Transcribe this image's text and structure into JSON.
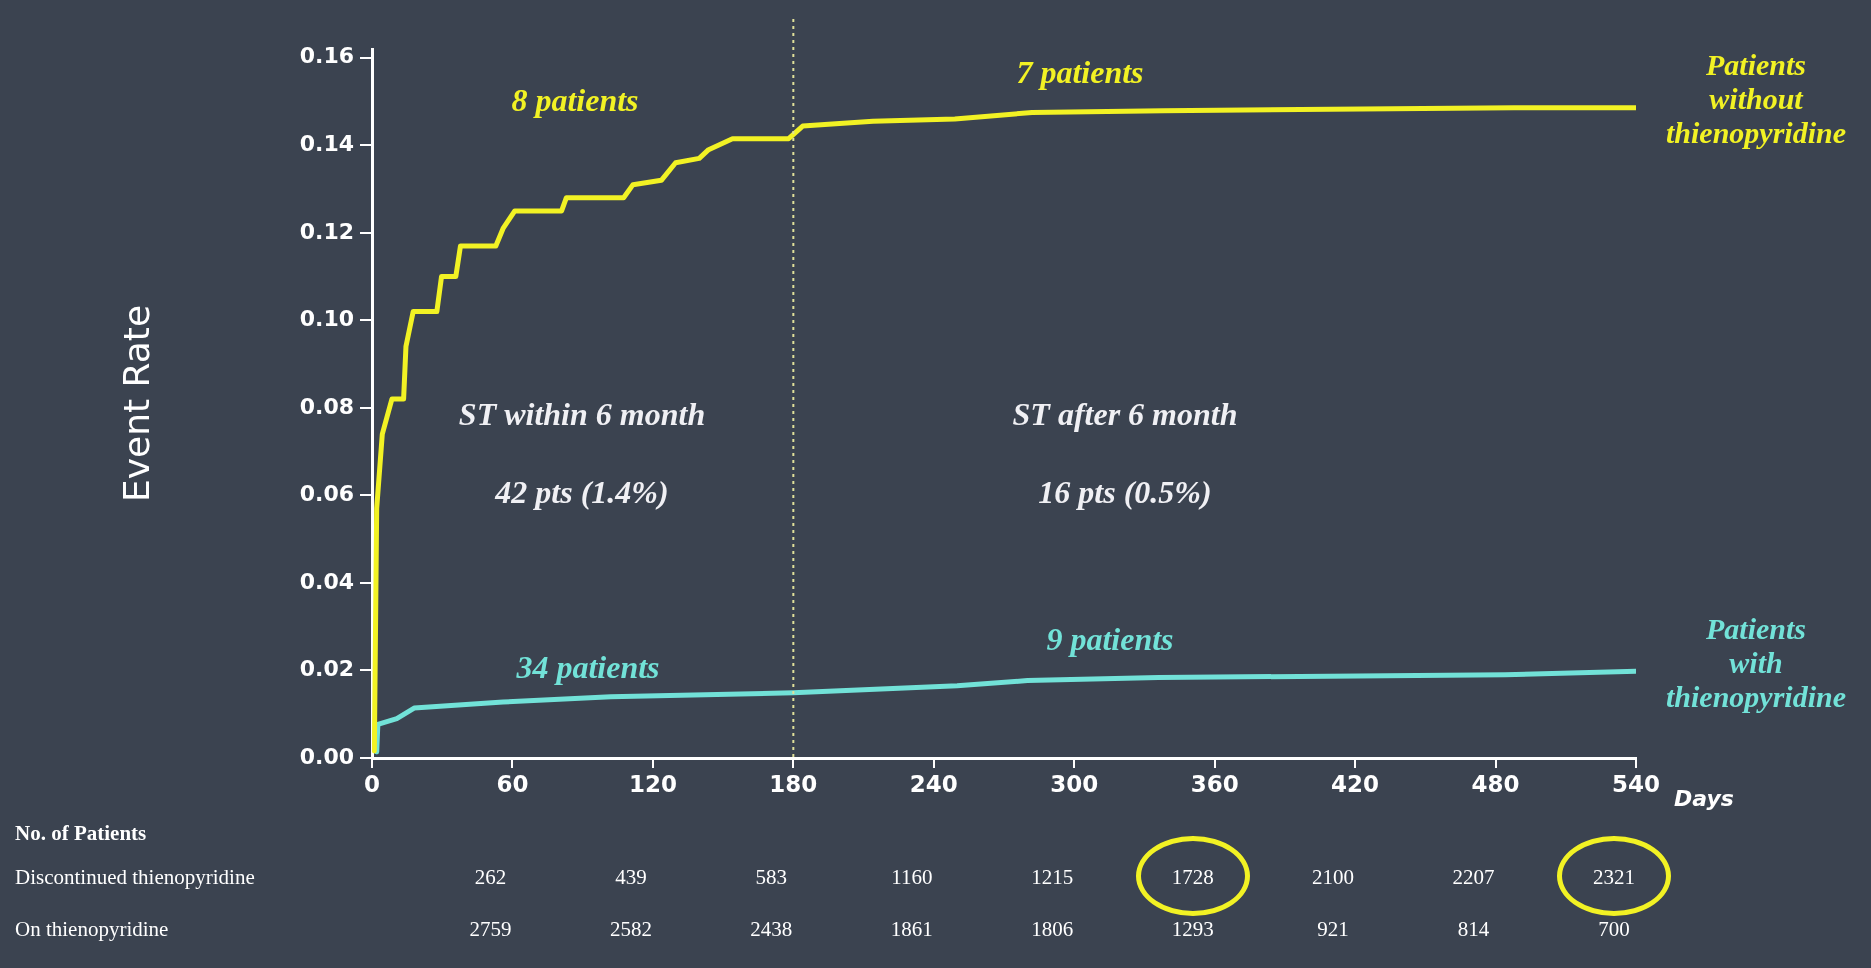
{
  "chart_data": {
    "type": "line",
    "ylabel": "Event Rate",
    "xlabel": "Days",
    "xlim": [
      0,
      540
    ],
    "xticks": [
      0,
      60,
      120,
      180,
      240,
      300,
      360,
      420,
      480,
      540
    ],
    "ylim": [
      0,
      0.162
    ],
    "yticks": [
      {
        "value": 0,
        "label": "0.00"
      },
      {
        "value": 0.02,
        "label": "0.02"
      },
      {
        "value": 0.04,
        "label": "0.04"
      },
      {
        "value": 0.06,
        "label": "0.06"
      },
      {
        "value": 0.08,
        "label": "0.08"
      },
      {
        "value": 0.1,
        "label": "0.10"
      },
      {
        "value": 0.12,
        "label": "0.12"
      },
      {
        "value": 0.14,
        "label": "0.14"
      },
      {
        "value": 0.16,
        "label": "0.16"
      }
    ],
    "grid": false,
    "legend": false,
    "marker": "none",
    "line_style": "solid",
    "series": [
      {
        "name": "Patients without thienopyridine",
        "color": "#f2f224",
        "x": [
          1,
          2,
          4.4,
          8.5,
          13.5,
          14.5,
          17.6,
          27.7,
          29.7,
          35.8,
          37.8,
          52.9,
          56,
          61,
          81,
          83,
          107.5,
          111.5,
          123.6,
          129.7,
          139.8,
          143.8,
          154,
          178,
          184,
          214,
          249,
          282,
          338,
          488,
          540
        ],
        "values": [
          0.0016,
          0.057,
          0.074,
          0.082,
          0.082,
          0.094,
          0.102,
          0.102,
          0.11,
          0.11,
          0.117,
          0.117,
          0.121,
          0.125,
          0.125,
          0.128,
          0.128,
          0.131,
          0.132,
          0.136,
          0.137,
          0.139,
          0.1415,
          0.1415,
          0.1444,
          0.1455,
          0.146,
          0.1475,
          0.1479,
          0.1486,
          0.1486
        ]
      },
      {
        "name": "Patients with thienopyridine",
        "color": "#72e2d8",
        "x": [
          2,
          2.5,
          10.6,
          18,
          56,
          102,
          180,
          250,
          280,
          336,
          484,
          540
        ],
        "values": [
          0.0014,
          0.0077,
          0.009,
          0.0114,
          0.0128,
          0.014,
          0.0149,
          0.0165,
          0.0177,
          0.0184,
          0.019,
          0.0198
        ]
      }
    ],
    "ref_lines": [
      {
        "axis": "x",
        "value": 180,
        "color": "#e0e09a",
        "line_style": "dotted"
      }
    ],
    "annotations": [
      "8 patients",
      "7 patients",
      "34 patients",
      "9 patients",
      "ST within 6 month",
      "42 pts (1.4%)",
      "ST after 6 month",
      "16 pts (0.5%)",
      "No. of Patients",
      "Discontinued thienopyridine",
      "262",
      "439",
      "583",
      "1160",
      "1215",
      "1728",
      "2100",
      "2207",
      "2321",
      "On thienopyridine",
      "2759",
      "2582",
      "2438",
      "1861",
      "1806",
      "1293",
      "921",
      "814",
      "700"
    ]
  }
}
